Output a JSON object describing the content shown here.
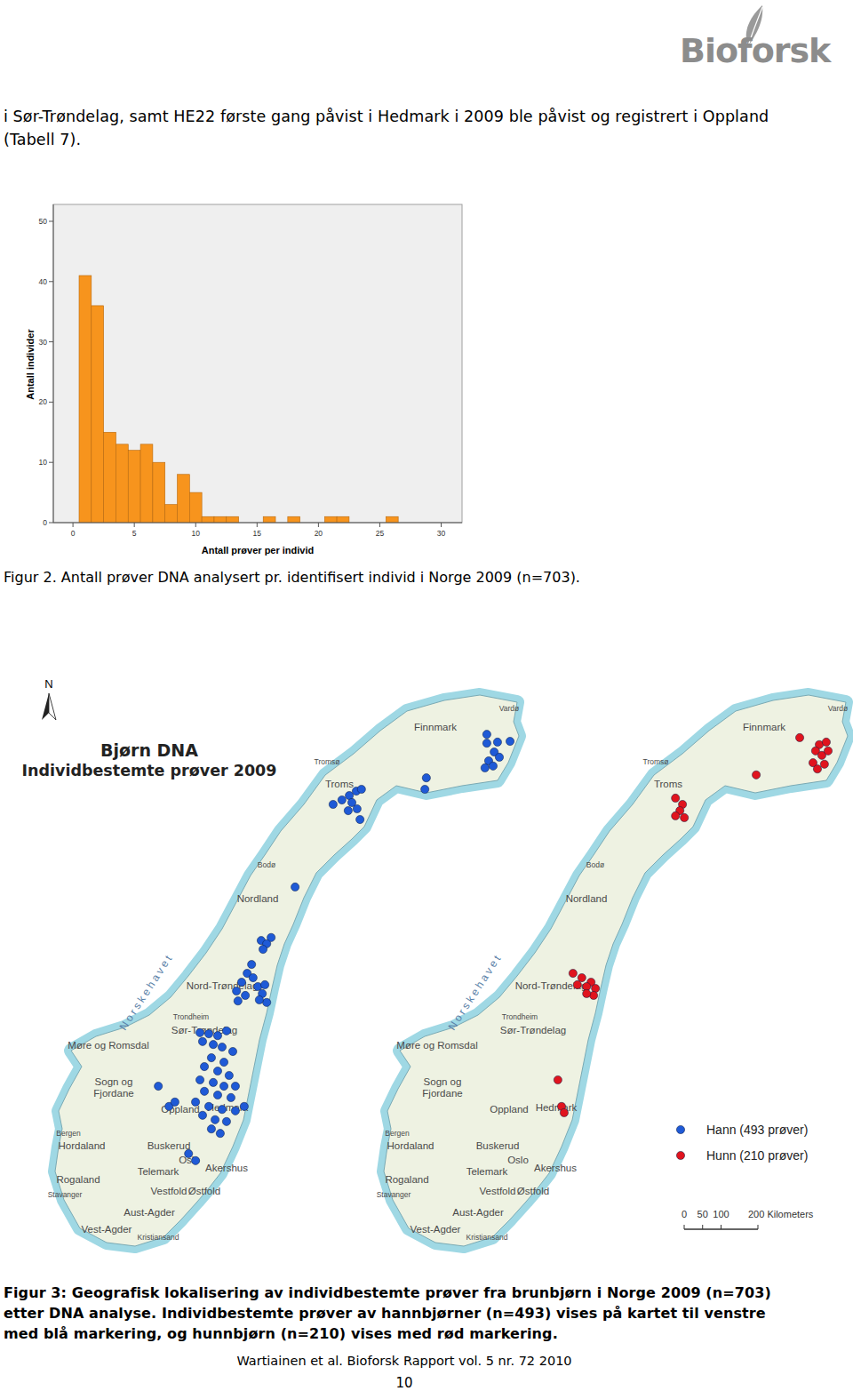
{
  "header": {
    "logo": "Bioforsk"
  },
  "body_text": "i Sør-Trøndelag, samt HE22 første gang påvist i Hedmark i 2009 ble påvist og registrert i Oppland (Tabell 7).",
  "chart_data": {
    "type": "histogram",
    "x_label": "Antall prøver per individ",
    "y_label": "Antall individer",
    "bins": [
      0.5,
      1.5,
      2.5,
      3.5,
      4.5,
      5.5,
      6.5,
      7.5,
      8.5,
      9.5,
      10.5,
      11.5,
      12.5,
      13.5,
      14.5,
      15.5,
      16.5,
      17.5,
      18.5,
      19.5,
      20.5,
      21.5,
      22.5,
      23.5,
      24.5,
      25.5,
      26.5
    ],
    "values": [
      41,
      36,
      15,
      13,
      12,
      13,
      10,
      3,
      8,
      5,
      1,
      1,
      1,
      0,
      0,
      1,
      0,
      1,
      0,
      0,
      1,
      1,
      0,
      0,
      0,
      1
    ],
    "color": "#f7941d",
    "xlim": [
      -1.6,
      31.7
    ],
    "ylim": [
      0,
      52.8
    ],
    "xticks": [
      0,
      5,
      10,
      15,
      20,
      25,
      30
    ],
    "yticks": [
      0,
      10,
      20,
      30,
      40,
      50
    ],
    "grid": false
  },
  "figure2_caption": "Figur 2. Antall prøver DNA analysert pr. identifisert individ i Norge 2009 (n=703).",
  "map_figure": {
    "north": "N",
    "title": "Bjørn DNA",
    "subtitle": "Individbestemte prøver 2009",
    "place_names": [
      "Vardø",
      "Finnmark",
      "Tromsø",
      "Troms",
      "Bodø",
      "Nordland",
      "Nord-Trøndelag",
      "Trondheim",
      "Sør-Trøndelag",
      "Møre og Romsdal",
      "Sogn og Fjordane",
      "Oppland",
      "Hedmark",
      "Bergen",
      "Hordaland",
      "Buskerud",
      "Oslo",
      "Akershus",
      "Rogaland",
      "Telemark",
      "Vestfold",
      "Østfold",
      "Stavanger",
      "Aust-Agder",
      "Vest-Agder",
      "Kristiansand",
      "Norskehavet"
    ],
    "series": [
      {
        "name": "Hann (493 prøver)",
        "color": "#1f5ad6",
        "points": [
          [
            1224,
            1383
          ],
          [
            1253,
            1386
          ],
          [
            1287,
            1388
          ],
          [
            1244,
            1359
          ],
          [
            1258,
            1345
          ],
          [
            1229,
            1335
          ],
          [
            1219,
            1316
          ],
          [
            1241,
            1321
          ],
          [
            1224,
            1407
          ],
          [
            1060,
            1289
          ],
          [
            1056,
            1258
          ],
          [
            807,
            1217
          ],
          [
            831,
            1229
          ],
          [
            851,
            1241
          ],
          [
            870,
            1253
          ],
          [
            884,
            1258
          ],
          [
            858,
            1222
          ],
          [
            872,
            1205
          ],
          [
            848,
            1200
          ],
          [
            880,
            1176
          ],
          [
            704,
            993
          ],
          [
            612,
            848
          ],
          [
            639,
            856
          ],
          [
            627,
            839
          ],
          [
            617,
            824
          ],
          [
            586,
            783
          ],
          [
            574,
            759
          ],
          [
            559,
            735
          ],
          [
            590,
            747
          ],
          [
            603,
            723
          ],
          [
            622,
            728
          ],
          [
            615,
            704
          ],
          [
            545,
            711
          ],
          [
            569,
            699
          ],
          [
            549,
            684
          ],
          [
            627,
            680
          ],
          [
            607,
            687
          ],
          [
            446,
            598
          ],
          [
            470,
            595
          ],
          [
            494,
            590
          ],
          [
            518,
            603
          ],
          [
            453,
            574
          ],
          [
            482,
            566
          ],
          [
            506,
            559
          ],
          [
            535,
            547
          ],
          [
            477,
            530
          ],
          [
            511,
            518
          ],
          [
            458,
            506
          ],
          [
            494,
            494
          ],
          [
            525,
            482
          ],
          [
            446,
            470
          ],
          [
            482,
            463
          ],
          [
            511,
            453
          ],
          [
            542,
            453
          ],
          [
            458,
            439
          ],
          [
            494,
            429
          ],
          [
            530,
            422
          ],
          [
            566,
            398
          ],
          [
            434,
            410
          ],
          [
            470,
            398
          ],
          [
            506,
            390
          ],
          [
            542,
            386
          ],
          [
            453,
            374
          ],
          [
            487,
            362
          ],
          [
            518,
            357
          ],
          [
            477,
            337
          ],
          [
            501,
            325
          ],
          [
            333,
            453
          ],
          [
            362,
            398
          ],
          [
            378,
            410
          ],
          [
            415,
            270
          ],
          [
            434,
            251
          ]
        ]
      },
      {
        "name": "Hunn (210 prøver)",
        "color": "#e0141e",
        "points": [
          [
            1234,
            1379
          ],
          [
            1253,
            1386
          ],
          [
            1224,
            1362
          ],
          [
            1241,
            1350
          ],
          [
            1217,
            1330
          ],
          [
            1229,
            1313
          ],
          [
            1248,
            1326
          ],
          [
            1258,
            1362
          ],
          [
            1181,
            1398
          ],
          [
            1063,
            1297
          ],
          [
            844,
            1234
          ],
          [
            863,
            1217
          ],
          [
            856,
            1200
          ],
          [
            844,
            1186
          ],
          [
            868,
            1181
          ],
          [
            566,
            759
          ],
          [
            590,
            747
          ],
          [
            615,
            735
          ],
          [
            603,
            723
          ],
          [
            627,
            718
          ],
          [
            578,
            728
          ],
          [
            622,
            699
          ],
          [
            603,
            704
          ],
          [
            525,
            470
          ],
          [
            535,
            398
          ],
          [
            542,
            381
          ]
        ]
      }
    ],
    "scale_bar": {
      "ticks": [
        0,
        50,
        100,
        {
          "value": 200,
          "label": "200 Kilometers"
        }
      ]
    }
  },
  "figure3_caption": "Figur 3: Geografisk lokalisering av individbestemte prøver fra brunbjørn i Norge 2009 (n=703) etter DNA analyse. Individbestemte prøver av hannbjørner (n=493) vises på kartet til venstre med blå markering, og hunnbjørn (n=210) vises med rød markering.",
  "footer": {
    "citation": "Wartiainen et al. Bioforsk Rapport vol. 5 nr. 72 2010",
    "page": 10
  }
}
